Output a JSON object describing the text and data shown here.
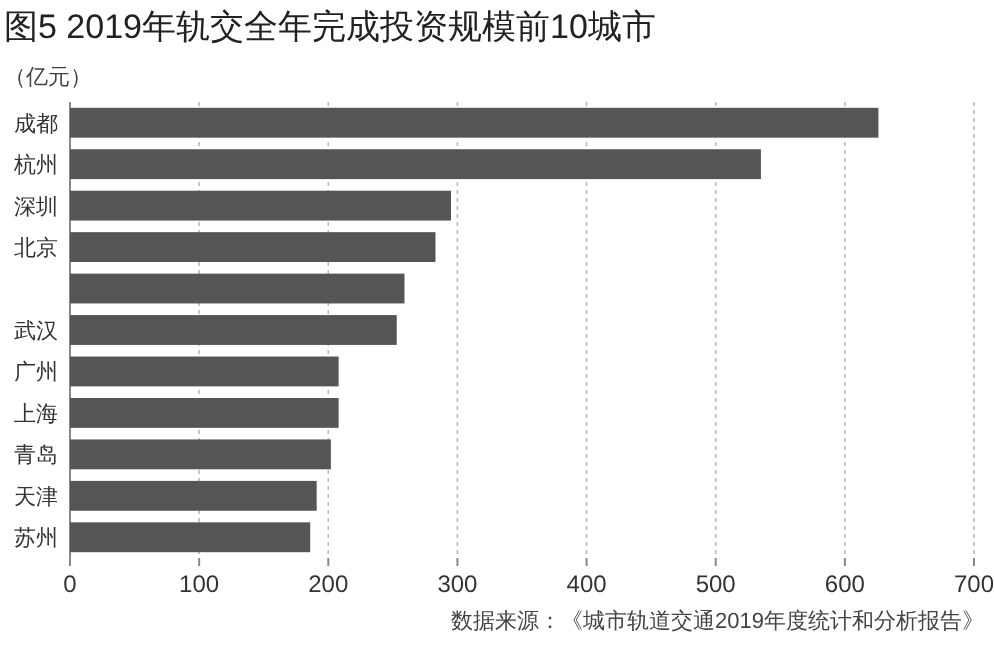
{
  "chart_data": {
    "type": "bar",
    "orientation": "horizontal",
    "title": "图5 2019年轨交全年完成投资规模前10城市",
    "ylabel": "（亿元）",
    "categories": [
      "成都",
      "杭州",
      "深圳",
      "北京",
      null,
      "武汉",
      "广州",
      "上海",
      "青岛",
      "天津",
      "苏州"
    ],
    "values": [
      626,
      535,
      295,
      283,
      259,
      253,
      208,
      208,
      202,
      191,
      186
    ],
    "color": "#555555",
    "xlim": [
      0,
      700
    ],
    "xticks": [
      0,
      100,
      200,
      300,
      400,
      500,
      600,
      700
    ],
    "grid": "x",
    "annotations": [
      "数据来源：《城市轨道交通2019年度统计和分析报告》"
    ]
  }
}
